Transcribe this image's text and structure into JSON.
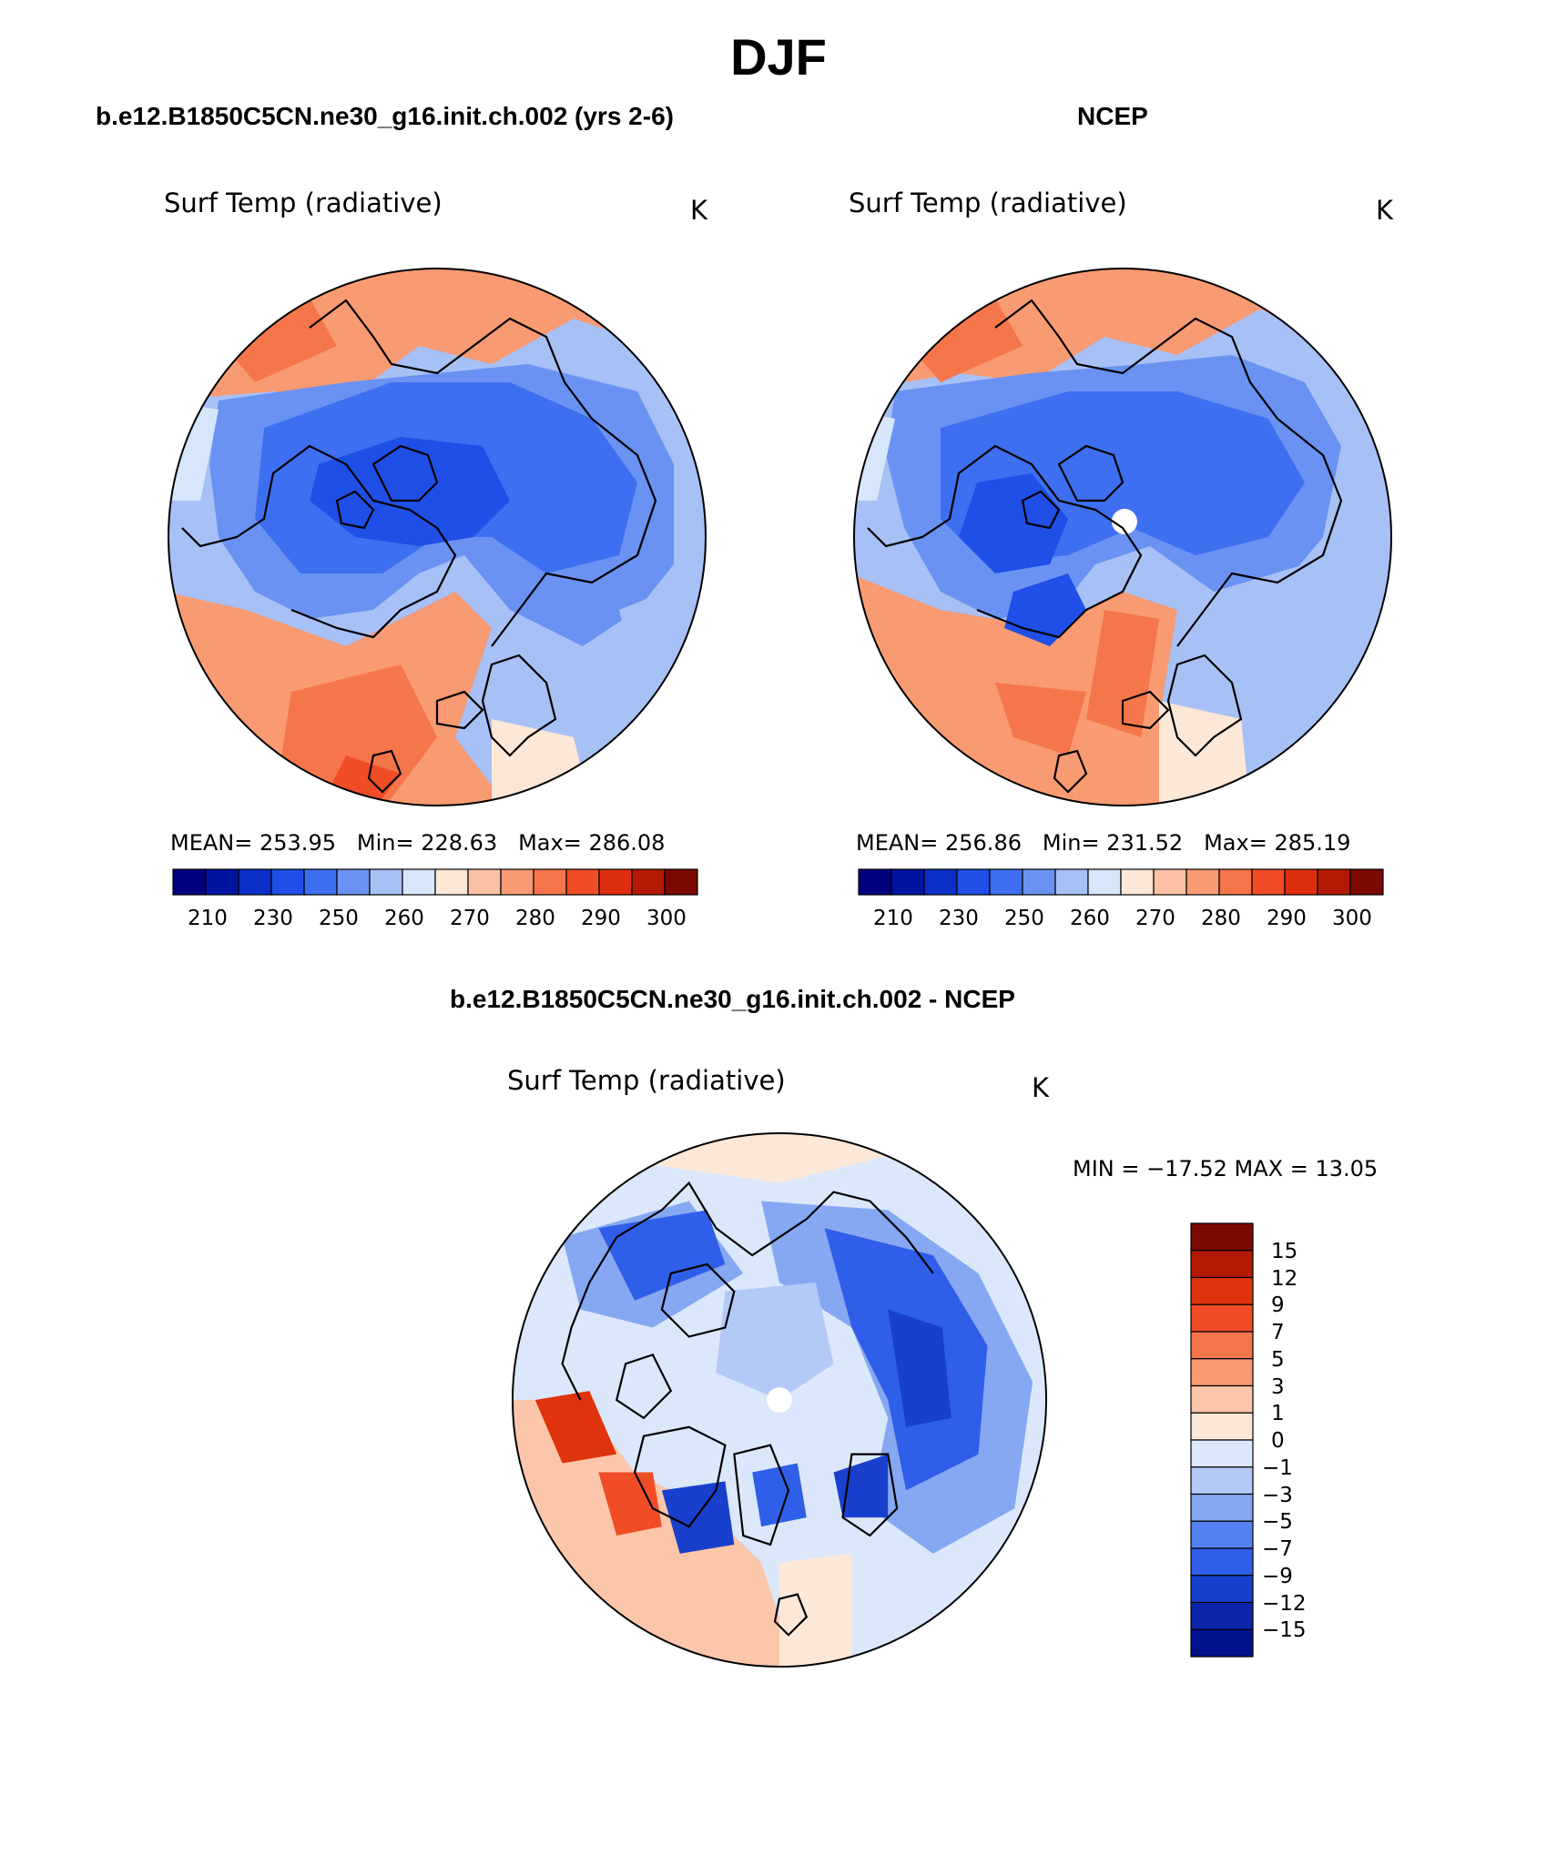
{
  "title": "DJF",
  "panels": [
    {
      "id": "model",
      "title": "b.e12.B1850C5CN.ne30_g16.init.ch.002 (yrs 2-6)",
      "variable": "Surf Temp (radiative)",
      "units": "K",
      "stats": {
        "mean_label": "MEAN=",
        "mean": "253.95",
        "min_label": "Min=",
        "min": "228.63",
        "max_label": "Max=",
        "max": "286.08"
      },
      "colorbar_ticks": [
        "210",
        "230",
        "250",
        "260",
        "270",
        "280",
        "290",
        "300"
      ]
    },
    {
      "id": "obs",
      "title": "NCEP",
      "variable": "Surf Temp (radiative)",
      "units": "K",
      "stats": {
        "mean_label": "MEAN=",
        "mean": "256.86",
        "min_label": "Min=",
        "min": "231.52",
        "max_label": "Max=",
        "max": "285.19"
      },
      "colorbar_ticks": [
        "210",
        "230",
        "250",
        "260",
        "270",
        "280",
        "290",
        "300"
      ]
    },
    {
      "id": "diff",
      "title": "b.e12.B1850C5CN.ne30_g16.init.ch.002 - NCEP",
      "variable": "Surf Temp (radiative)",
      "units": "K",
      "stats_text": "MIN = −17.52 MAX =   13.05",
      "colorbar_ticks": [
        "15",
        "12",
        "9",
        "7",
        "5",
        "3",
        "1",
        "0",
        "−1",
        "−3",
        "−5",
        "−7",
        "−9",
        "−12",
        "−15"
      ]
    }
  ],
  "colors": {
    "abs_palette": [
      "#00007f",
      "#0014a0",
      "#0a2fc8",
      "#1f4fe6",
      "#3d6ff0",
      "#6a92f2",
      "#a7c0f6",
      "#d8e6fb",
      "#fde7d6",
      "#fbc0a4",
      "#f89a72",
      "#f5764a",
      "#f04d26",
      "#de2e0d",
      "#b31a04",
      "#7a0a00"
    ],
    "diff_palette": [
      "#7a0a00",
      "#b31a04",
      "#de330c",
      "#f04d26",
      "#f5764a",
      "#f89a72",
      "#fbc6aa",
      "#fde8d8",
      "#dbe7fb",
      "#b3c9f6",
      "#86a8f2",
      "#5580ef",
      "#2f5fe8",
      "#1940cc",
      "#0b25a8",
      "#00118c"
    ]
  }
}
